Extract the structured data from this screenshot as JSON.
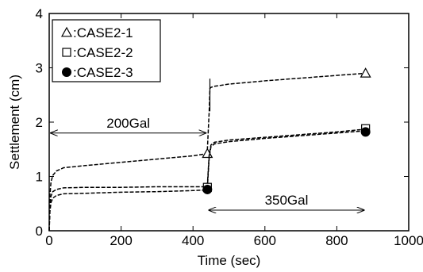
{
  "chart_data": {
    "type": "line",
    "xlabel": "Time (sec)",
    "ylabel": "Settlement (cm)",
    "xlim": [
      0,
      1000
    ],
    "ylim": [
      0,
      4
    ],
    "x_ticks": [
      0,
      200,
      400,
      600,
      800,
      1000
    ],
    "y_ticks": [
      0,
      1,
      2,
      3,
      4
    ],
    "grid": false,
    "legend_position": "top-left",
    "series": [
      {
        "name": ":CASE2-1",
        "marker": "triangle-open",
        "x": [
          0,
          2,
          5,
          10,
          20,
          40,
          100,
          200,
          300,
          400,
          430,
          438,
          440,
          445,
          447,
          450,
          460,
          500,
          600,
          700,
          800,
          880
        ],
        "y": [
          0,
          0.65,
          0.9,
          1.02,
          1.1,
          1.16,
          1.2,
          1.26,
          1.32,
          1.38,
          1.41,
          1.42,
          1.5,
          2.2,
          2.62,
          2.64,
          2.66,
          2.7,
          2.76,
          2.81,
          2.86,
          2.9
        ],
        "marker_points": [
          [
            440,
            1.42
          ],
          [
            880,
            2.9
          ]
        ]
      },
      {
        "name": ":CASE2-2",
        "marker": "square-open",
        "x": [
          0,
          2,
          5,
          10,
          20,
          40,
          100,
          200,
          300,
          400,
          435,
          440,
          445,
          450,
          460,
          500,
          600,
          700,
          800,
          880
        ],
        "y": [
          0,
          0.45,
          0.64,
          0.72,
          0.76,
          0.79,
          0.8,
          0.8,
          0.81,
          0.81,
          0.81,
          0.85,
          1.4,
          1.58,
          1.63,
          1.67,
          1.72,
          1.77,
          1.82,
          1.87
        ],
        "marker_points": [
          [
            440,
            0.8
          ],
          [
            880,
            1.88
          ]
        ]
      },
      {
        "name": ":CASE2-3",
        "marker": "circle-filled",
        "x": [
          0,
          2,
          5,
          10,
          20,
          40,
          100,
          200,
          300,
          400,
          435,
          440,
          445,
          450,
          460,
          500,
          600,
          700,
          800,
          880
        ],
        "y": [
          0,
          0.35,
          0.52,
          0.6,
          0.65,
          0.68,
          0.69,
          0.71,
          0.72,
          0.74,
          0.75,
          0.8,
          1.35,
          1.55,
          1.6,
          1.64,
          1.7,
          1.75,
          1.8,
          1.84
        ],
        "marker_points": [
          [
            440,
            0.76
          ],
          [
            880,
            1.82
          ]
        ]
      }
    ],
    "spike": {
      "x": 447,
      "y": [
        2.2,
        2.8
      ]
    },
    "annotations": [
      {
        "text": "200Gal",
        "arrow_from": 0,
        "arrow_to": 440,
        "arrow_y": 1.8,
        "text_y": 1.9
      },
      {
        "text": "350Gal",
        "arrow_from": 440,
        "arrow_to": 880,
        "arrow_y": 0.38,
        "text_y": 0.48
      }
    ]
  }
}
